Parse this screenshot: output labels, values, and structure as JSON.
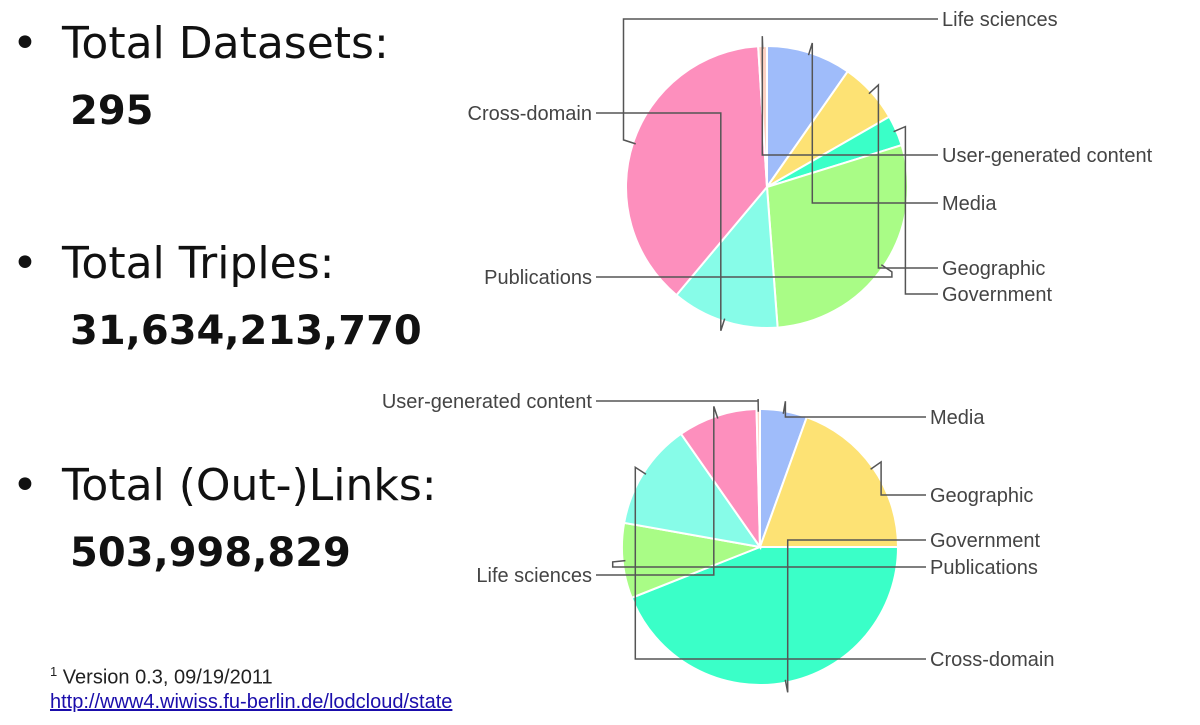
{
  "stats": [
    {
      "label": "Total Datasets:",
      "value": "295"
    },
    {
      "label": "Total Triples:",
      "value": "31,634,213,770"
    },
    {
      "label": "Total (Out-)Links:",
      "value": "503,998,829"
    }
  ],
  "footnote": {
    "marker": "1",
    "text": "Version 0.3, 09/19/2011",
    "link": "http://www4.wiwiss.fu-berlin.de/lodcloud/state"
  },
  "colors": {
    "Media": "#9fbcfa",
    "Geographic": "#fde274",
    "Government": "#3affc8",
    "Publications": "#a9fc86",
    "Cross-domain": "#87fce8",
    "Life sciences": "#fd8fbd",
    "User-generated content": "#fdd2c4"
  },
  "chart_data": [
    {
      "type": "pie",
      "title": "",
      "categories": [
        "Media",
        "Geographic",
        "Government",
        "Publications",
        "Cross-domain",
        "Life sciences",
        "User-generated content"
      ],
      "values": [
        9.7,
        7.0,
        3.5,
        28.6,
        12.3,
        37.9,
        1.0
      ],
      "labels": [
        {
          "category": "Media",
          "text": "Media"
        },
        {
          "category": "Geographic",
          "text": "Geographic"
        },
        {
          "category": "Government",
          "text": "Government"
        },
        {
          "category": "Publications",
          "text": "Publications"
        },
        {
          "category": "Cross-domain",
          "text": "Cross-domain"
        },
        {
          "category": "Life sciences",
          "text": "Life sciences"
        },
        {
          "category": "User-generated content",
          "text": "User-generated content"
        }
      ]
    },
    {
      "type": "pie",
      "title": "",
      "categories": [
        "Media",
        "Geographic",
        "Government",
        "Publications",
        "Cross-domain",
        "Life sciences",
        "User-generated content"
      ],
      "values": [
        5.5,
        19.5,
        44.0,
        8.8,
        12.5,
        9.3,
        0.4
      ],
      "labels": [
        {
          "category": "Publications",
          "text": "Publications"
        },
        {
          "category": "Cross-domain",
          "text": "Cross-domain"
        },
        {
          "category": "Life sciences",
          "text": "Life sciences"
        },
        {
          "category": "User-generated content",
          "text": "User-generated content"
        },
        {
          "category": "Media",
          "text": "Media"
        },
        {
          "category": "Geographic",
          "text": "Geographic"
        },
        {
          "category": "Government",
          "text": "Government"
        }
      ]
    }
  ]
}
